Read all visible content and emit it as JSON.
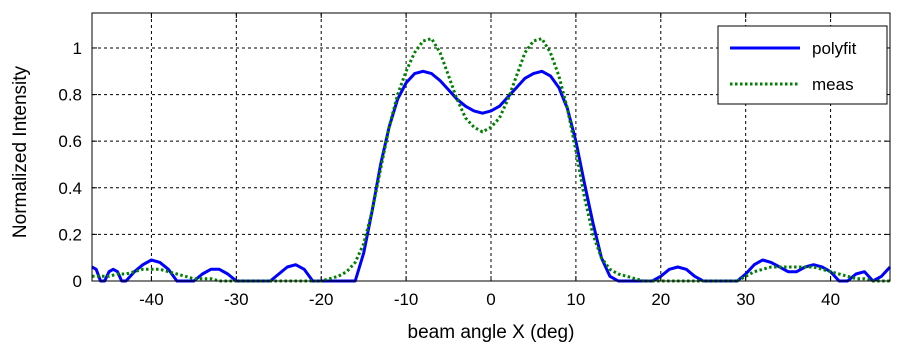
{
  "chart_data": {
    "type": "line",
    "xlabel": "beam angle X (deg)",
    "ylabel": "Normalized Intensity",
    "xlim": [
      -47,
      47
    ],
    "ylim": [
      0,
      1.15
    ],
    "xticks": [
      -40,
      -30,
      -20,
      -10,
      0,
      10,
      20,
      30,
      40
    ],
    "yticks": [
      0,
      0.2,
      0.4,
      0.6,
      0.8,
      1
    ],
    "xtick_labels": [
      "-40",
      "-30",
      "-20",
      "-10",
      "0",
      "10",
      "20",
      "30",
      "40"
    ],
    "ytick_labels": [
      "0",
      "0.2",
      "0.4",
      "0.6",
      "0.8",
      "1"
    ],
    "grid": true,
    "legend_position": "top-right",
    "series": [
      {
        "name": "polyfit",
        "color": "#0000ff",
        "style": "solid",
        "x": [
          -47,
          -46.5,
          -46,
          -45.5,
          -45,
          -44.5,
          -44,
          -43.5,
          -43,
          -42,
          -41,
          -40,
          -39,
          -38,
          -37,
          -36,
          -35,
          -34,
          -33,
          -32,
          -31,
          -30,
          -29,
          -28,
          -27,
          -26,
          -25,
          -24,
          -23,
          -22,
          -21,
          -20,
          -19,
          -18,
          -17,
          -16,
          -15,
          -14,
          -13,
          -12,
          -11,
          -10,
          -9,
          -8,
          -7,
          -6,
          -5,
          -4,
          -3,
          -2,
          -1,
          0,
          1,
          2,
          3,
          4,
          5,
          6,
          7,
          8,
          9,
          10,
          11,
          12,
          13,
          14,
          15,
          16,
          17,
          18,
          19,
          20,
          21,
          22,
          23,
          24,
          25,
          26,
          27,
          28,
          29,
          30,
          31,
          32,
          33,
          34,
          35,
          36,
          37,
          38,
          39,
          40,
          41,
          42,
          43,
          44,
          45,
          46,
          47
        ],
        "y": [
          0.06,
          0.05,
          0.0,
          0.0,
          0.04,
          0.05,
          0.04,
          0.0,
          0.0,
          0.04,
          0.07,
          0.09,
          0.08,
          0.05,
          0.0,
          0.0,
          0.0,
          0.03,
          0.05,
          0.05,
          0.03,
          0.0,
          0.0,
          0.0,
          0.0,
          0.0,
          0.03,
          0.06,
          0.07,
          0.05,
          0.0,
          0.0,
          0.0,
          0.0,
          0.0,
          0.0,
          0.12,
          0.3,
          0.5,
          0.66,
          0.78,
          0.85,
          0.89,
          0.9,
          0.89,
          0.86,
          0.82,
          0.78,
          0.75,
          0.73,
          0.72,
          0.73,
          0.75,
          0.79,
          0.83,
          0.87,
          0.89,
          0.9,
          0.88,
          0.83,
          0.74,
          0.6,
          0.42,
          0.25,
          0.1,
          0.02,
          0.0,
          0.0,
          0.0,
          0.0,
          0.0,
          0.02,
          0.05,
          0.06,
          0.05,
          0.02,
          0.0,
          0.0,
          0.0,
          0.0,
          0.0,
          0.03,
          0.07,
          0.09,
          0.08,
          0.06,
          0.04,
          0.04,
          0.06,
          0.07,
          0.06,
          0.04,
          0.0,
          0.0,
          0.03,
          0.04,
          0.0,
          0.02,
          0.06
        ]
      },
      {
        "name": "meas",
        "color": "#008000",
        "style": "dotted",
        "x": [
          -47,
          -46,
          -45,
          -44,
          -43,
          -42,
          -41,
          -40,
          -39,
          -38,
          -37,
          -36,
          -35,
          -34,
          -33,
          -32,
          -31,
          -30,
          -29,
          -28,
          -27,
          -26,
          -25,
          -24,
          -23,
          -22,
          -21,
          -20,
          -19,
          -18,
          -17,
          -16,
          -15,
          -14,
          -13,
          -12,
          -11,
          -10,
          -9,
          -8,
          -7,
          -6,
          -5,
          -4,
          -3,
          -2,
          -1,
          0,
          1,
          2,
          3,
          4,
          5,
          6,
          7,
          8,
          9,
          10,
          11,
          12,
          13,
          14,
          15,
          16,
          17,
          18,
          19,
          20,
          21,
          22,
          23,
          24,
          25,
          26,
          27,
          28,
          29,
          30,
          31,
          32,
          33,
          34,
          35,
          36,
          37,
          38,
          39,
          40,
          41,
          42,
          43,
          44,
          45,
          46,
          47
        ],
        "y": [
          0.02,
          0.02,
          0.02,
          0.03,
          0.03,
          0.04,
          0.05,
          0.05,
          0.05,
          0.04,
          0.03,
          0.02,
          0.01,
          0.01,
          0.01,
          0.0,
          0.0,
          0.0,
          0.0,
          0.0,
          0.0,
          0.0,
          0.0,
          0.0,
          0.0,
          0.0,
          0.0,
          0.0,
          0.01,
          0.02,
          0.04,
          0.08,
          0.16,
          0.3,
          0.48,
          0.66,
          0.8,
          0.9,
          0.98,
          1.03,
          1.04,
          0.98,
          0.88,
          0.78,
          0.7,
          0.66,
          0.64,
          0.66,
          0.7,
          0.78,
          0.88,
          0.98,
          1.03,
          1.04,
          0.98,
          0.88,
          0.74,
          0.56,
          0.36,
          0.2,
          0.1,
          0.05,
          0.03,
          0.02,
          0.01,
          0.0,
          0.0,
          0.0,
          0.0,
          0.0,
          0.0,
          0.0,
          0.0,
          0.0,
          0.0,
          0.0,
          0.0,
          0.02,
          0.04,
          0.05,
          0.06,
          0.06,
          0.06,
          0.06,
          0.06,
          0.06,
          0.05,
          0.04,
          0.03,
          0.02,
          0.01,
          0.01,
          0.0,
          0.0,
          0.0
        ]
      }
    ]
  }
}
